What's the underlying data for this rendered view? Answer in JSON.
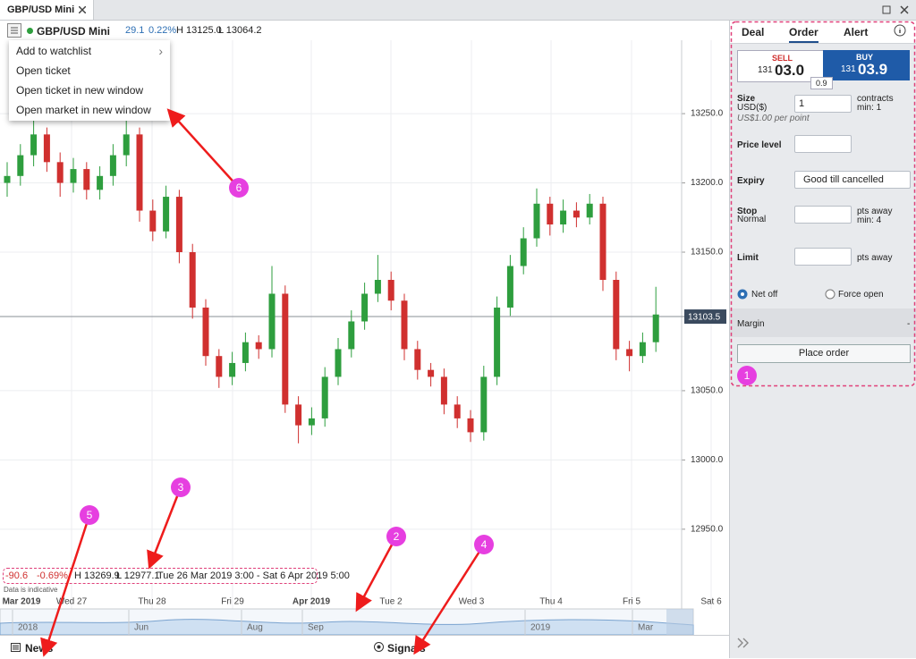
{
  "tab": {
    "title": "GBP/USD Mini"
  },
  "toolbar": {
    "market": "GBP/USD Mini",
    "change": "29.1",
    "change_pct": "0.22%",
    "high": "H 13125.0",
    "low": "L 13064.2"
  },
  "menu": {
    "items": [
      "Add to watchlist",
      "Open ticket",
      "Open ticket in new window",
      "Open market in new window"
    ]
  },
  "chart": {
    "type": "candlestick",
    "ylim": [
      12906,
      13303
    ],
    "yticks": [
      {
        "value": 12950,
        "label": "12950.0"
      },
      {
        "value": 13000,
        "label": "13000.0"
      },
      {
        "value": 13050,
        "label": "13050.0"
      },
      {
        "value": 13150,
        "label": "13150.0"
      },
      {
        "value": 13200,
        "label": "13200.0"
      },
      {
        "value": 13250,
        "label": "13250.0"
      }
    ],
    "current_price": {
      "value": 13103.5,
      "label": "13103.5"
    },
    "up_color": "#2e9e3e",
    "down_color": "#d0302f",
    "x_labels": [
      "Mar 2019",
      "Wed 27",
      "Thu 28",
      "Fri 29",
      "Apr 2019",
      "Tue 2",
      "Wed 3",
      "Thu 4",
      "Fri 5",
      "Sat 6"
    ],
    "candles": [
      [
        13200,
        13215,
        13190,
        13205
      ],
      [
        13205,
        13228,
        13198,
        13220
      ],
      [
        13220,
        13262,
        13212,
        13235
      ],
      [
        13235,
        13240,
        13208,
        13215
      ],
      [
        13215,
        13222,
        13190,
        13200
      ],
      [
        13200,
        13218,
        13193,
        13210
      ],
      [
        13210,
        13215,
        13188,
        13195
      ],
      [
        13195,
        13212,
        13188,
        13205
      ],
      [
        13205,
        13228,
        13198,
        13220
      ],
      [
        13220,
        13252,
        13212,
        13235
      ],
      [
        13235,
        13240,
        13172,
        13180
      ],
      [
        13180,
        13188,
        13158,
        13165
      ],
      [
        13165,
        13198,
        13160,
        13190
      ],
      [
        13190,
        13195,
        13142,
        13150
      ],
      [
        13150,
        13156,
        13102,
        13110
      ],
      [
        13110,
        13116,
        13068,
        13075
      ],
      [
        13075,
        13080,
        13052,
        13060
      ],
      [
        13060,
        13078,
        13054,
        13070
      ],
      [
        13070,
        13092,
        13064,
        13085
      ],
      [
        13085,
        13090,
        13073,
        13080
      ],
      [
        13080,
        13140,
        13074,
        13120
      ],
      [
        13120,
        13126,
        13034,
        13040
      ],
      [
        13040,
        13046,
        13012,
        13025
      ],
      [
        13025,
        13038,
        13018,
        13030
      ],
      [
        13030,
        13067,
        13024,
        13060
      ],
      [
        13060,
        13088,
        13054,
        13080
      ],
      [
        13080,
        13108,
        13074,
        13100
      ],
      [
        13100,
        13128,
        13094,
        13120
      ],
      [
        13120,
        13148,
        13114,
        13130
      ],
      [
        13130,
        13136,
        13108,
        13115
      ],
      [
        13115,
        13120,
        13072,
        13080
      ],
      [
        13080,
        13086,
        13058,
        13065
      ],
      [
        13065,
        13070,
        13053,
        13060
      ],
      [
        13060,
        13066,
        13033,
        13040
      ],
      [
        13040,
        13046,
        13023,
        13030
      ],
      [
        13030,
        13036,
        13013,
        13020
      ],
      [
        13020,
        13068,
        13014,
        13060
      ],
      [
        13060,
        13118,
        13054,
        13110
      ],
      [
        13110,
        13148,
        13104,
        13140
      ],
      [
        13140,
        13168,
        13134,
        13160
      ],
      [
        13160,
        13196,
        13154,
        13185
      ],
      [
        13185,
        13190,
        13162,
        13170
      ],
      [
        13170,
        13188,
        13164,
        13180
      ],
      [
        13180,
        13186,
        13168,
        13175
      ],
      [
        13175,
        13192,
        13170,
        13185
      ],
      [
        13185,
        13190,
        13122,
        13130
      ],
      [
        13130,
        13136,
        13072,
        13080
      ],
      [
        13080,
        13086,
        13064,
        13075
      ],
      [
        13075,
        13092,
        13070,
        13085
      ],
      [
        13085,
        13125,
        13078,
        13105
      ]
    ]
  },
  "info_bar": {
    "change": "-90.6",
    "change_pct": "-0.69%",
    "high": "H 13269.9",
    "low": "L 12977.1",
    "range": "Tue 26 Mar 2019 3:00 - Sat 6 Apr 2019 5:00",
    "note": "Data is indicative"
  },
  "navigator": {
    "labels": [
      "2018",
      "Jun",
      "Aug",
      "Sep",
      "2019",
      "Mar"
    ]
  },
  "bottom_bar": {
    "news": "News",
    "signals": "Signals"
  },
  "ticket": {
    "tabs": [
      "Deal",
      "Order",
      "Alert"
    ],
    "sell": {
      "label": "SELL",
      "big": "131",
      "price": "03.0"
    },
    "buy": {
      "label": "BUY",
      "big": "131",
      "price": "03.9"
    },
    "spread": "0.9",
    "size": {
      "label": "Size",
      "currency": "USD($)",
      "value": "1",
      "unit": "contracts",
      "min": "min: 1",
      "per_point": "US$1.00 per point"
    },
    "price_level": "Price level",
    "expiry": {
      "label": "Expiry",
      "value": "Good till cancelled"
    },
    "stop": {
      "label": "Stop",
      "type": "Normal",
      "unit": "pts away",
      "min": "min: 4"
    },
    "limit": {
      "label": "Limit",
      "unit": "pts away"
    },
    "net_off": "Net off",
    "force_open": "Force open",
    "margin": {
      "label": "Margin",
      "value": "-"
    },
    "place_order": "Place order"
  },
  "annotations": [
    "1",
    "2",
    "3",
    "4",
    "5",
    "6"
  ]
}
